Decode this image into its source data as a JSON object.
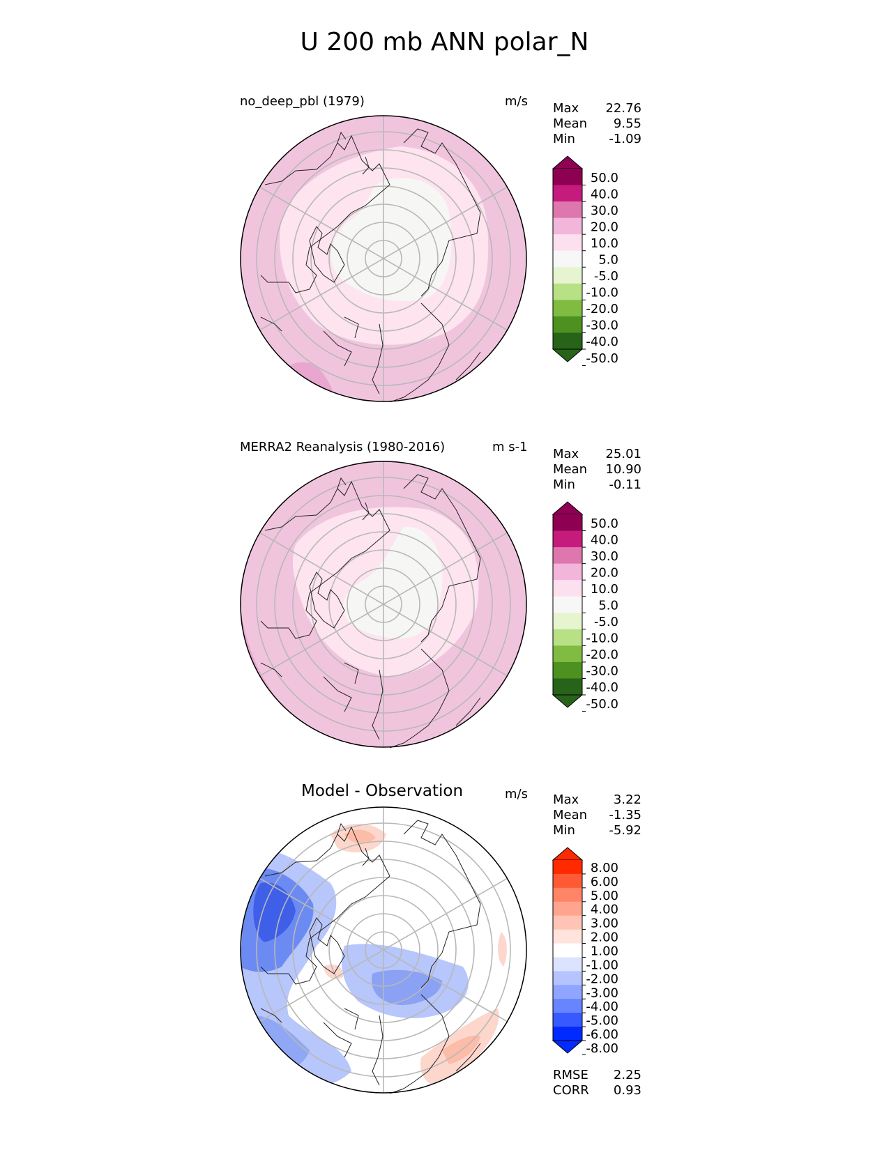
{
  "figure_title": "U 200 mb ANN polar_N",
  "panels": [
    {
      "name": "test",
      "title": "no_deep_pbl (1979)",
      "units": "m/s",
      "stats": [
        {
          "label": "Max",
          "value": "22.76"
        },
        {
          "label": "Mean",
          "value": "9.55"
        },
        {
          "label": "Min",
          "value": "-1.09"
        }
      ],
      "colorbar": {
        "ticks": [
          "50.0",
          "40.0",
          "30.0",
          "20.0",
          "10.0",
          "5.0",
          "-5.0",
          "-10.0",
          "-20.0",
          "-30.0",
          "-40.0",
          "-50.0"
        ],
        "colors": [
          "#8e0152",
          "#c51b7d",
          "#de77ae",
          "#f1b6da",
          "#fde0ef",
          "#f7f7f7",
          "#e6f5d0",
          "#b8e186",
          "#7fbc41",
          "#4d9221",
          "#276419"
        ]
      }
    },
    {
      "name": "reference",
      "title": "MERRA2 Reanalysis (1980-2016)",
      "units": "m s-1",
      "stats": [
        {
          "label": "Max",
          "value": "25.01"
        },
        {
          "label": "Mean",
          "value": "10.90"
        },
        {
          "label": "Min",
          "value": "-0.11"
        }
      ],
      "colorbar": {
        "ticks": [
          "50.0",
          "40.0",
          "30.0",
          "20.0",
          "10.0",
          "5.0",
          "-5.0",
          "-10.0",
          "-20.0",
          "-30.0",
          "-40.0",
          "-50.0"
        ],
        "colors": [
          "#8e0152",
          "#c51b7d",
          "#de77ae",
          "#f1b6da",
          "#fde0ef",
          "#f7f7f7",
          "#e6f5d0",
          "#b8e186",
          "#7fbc41",
          "#4d9221",
          "#276419"
        ]
      }
    },
    {
      "name": "difference",
      "title": "Model - Observation",
      "units": "m/s",
      "stats": [
        {
          "label": "Max",
          "value": "3.22"
        },
        {
          "label": "Mean",
          "value": "-1.35"
        },
        {
          "label": "Min",
          "value": "-5.92"
        }
      ],
      "colorbar": {
        "ticks": [
          "8.00",
          "6.00",
          "5.00",
          "4.00",
          "3.00",
          "2.00",
          "1.00",
          "-1.00",
          "-2.00",
          "-3.00",
          "-4.00",
          "-5.00",
          "-6.00",
          "-8.00"
        ],
        "colors": [
          "#ff2a00",
          "#ff5a36",
          "#ff8566",
          "#ffa58f",
          "#ffc4b5",
          "#ffe3dc",
          "#ffffff",
          "#dce3ff",
          "#b5c4ff",
          "#8fa5ff",
          "#6685ff",
          "#365aff",
          "#002aff"
        ]
      },
      "metrics": [
        {
          "label": "RMSE",
          "value": "2.25"
        },
        {
          "label": "CORR",
          "value": "0.93"
        }
      ]
    }
  ]
}
